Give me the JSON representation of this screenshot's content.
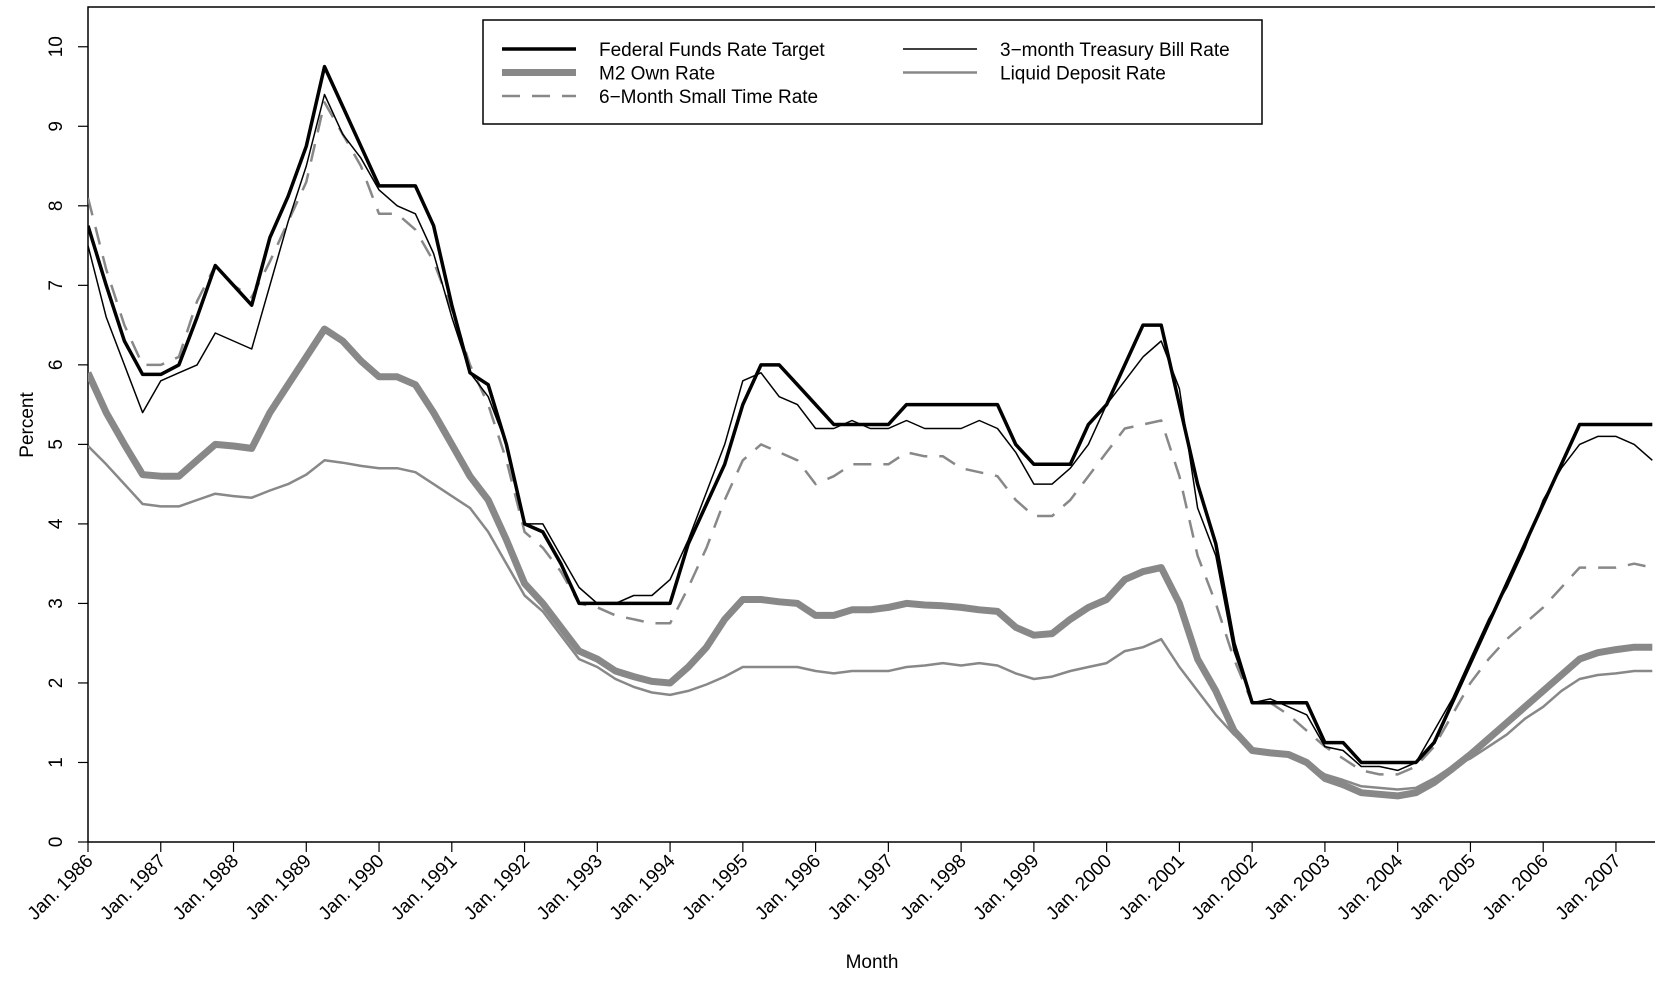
{
  "chart_data": {
    "type": "line",
    "x_label": "Month",
    "y_label": "Percent",
    "x": [
      1986,
      1986.25,
      1986.5,
      1986.75,
      1987,
      1987.25,
      1987.5,
      1987.75,
      1988,
      1988.25,
      1988.5,
      1988.75,
      1989,
      1989.25,
      1989.5,
      1989.75,
      1990,
      1990.25,
      1990.5,
      1990.75,
      1991,
      1991.25,
      1991.5,
      1991.75,
      1992,
      1992.25,
      1992.5,
      1992.75,
      1993,
      1993.25,
      1993.5,
      1993.75,
      1994,
      1994.25,
      1994.5,
      1994.75,
      1995,
      1995.25,
      1995.5,
      1995.75,
      1996,
      1996.25,
      1996.5,
      1996.75,
      1997,
      1997.25,
      1997.5,
      1997.75,
      1998,
      1998.25,
      1998.5,
      1998.75,
      1999,
      1999.25,
      1999.5,
      1999.75,
      2000,
      2000.25,
      2000.5,
      2000.75,
      2001,
      2001.25,
      2001.5,
      2001.75,
      2002,
      2002.25,
      2002.5,
      2002.75,
      2003,
      2003.25,
      2003.5,
      2003.75,
      2004,
      2004.25,
      2004.5,
      2004.75,
      2005,
      2005.25,
      2005.5,
      2005.75,
      2006,
      2006.25,
      2006.5,
      2006.75,
      2007,
      2007.25,
      2007.5
    ],
    "series": [
      {
        "name": "Federal Funds Rate Target",
        "color": "#000000",
        "line_width": 3.5,
        "dash": "none",
        "values": [
          7.75,
          7.0,
          6.3,
          5.88,
          5.88,
          6.0,
          6.6,
          7.25,
          7.0,
          6.75,
          7.6,
          8.12,
          8.75,
          9.75,
          9.25,
          8.75,
          8.25,
          8.25,
          8.25,
          7.75,
          6.75,
          5.9,
          5.75,
          5.0,
          4.0,
          3.9,
          3.5,
          3.0,
          3.0,
          3.0,
          3.0,
          3.0,
          3.0,
          3.75,
          4.25,
          4.75,
          5.5,
          6.0,
          6.0,
          5.75,
          5.5,
          5.25,
          5.25,
          5.25,
          5.25,
          5.5,
          5.5,
          5.5,
          5.5,
          5.5,
          5.5,
          5.0,
          4.75,
          4.75,
          4.75,
          5.25,
          5.5,
          6.0,
          6.5,
          6.5,
          5.5,
          4.5,
          3.75,
          2.5,
          1.75,
          1.75,
          1.75,
          1.75,
          1.25,
          1.25,
          1.0,
          1.0,
          1.0,
          1.0,
          1.25,
          1.75,
          2.25,
          2.75,
          3.25,
          3.75,
          4.25,
          4.75,
          5.25,
          5.25,
          5.25,
          5.25,
          5.25
        ]
      },
      {
        "name": "M2 Own Rate",
        "color": "#888888",
        "line_width": 7,
        "dash": "none",
        "values": [
          5.9,
          5.4,
          5.0,
          4.62,
          4.6,
          4.6,
          4.8,
          5.0,
          4.98,
          4.95,
          5.4,
          5.75,
          6.1,
          6.45,
          6.3,
          6.05,
          5.85,
          5.85,
          5.75,
          5.4,
          5.0,
          4.6,
          4.3,
          3.8,
          3.25,
          3.0,
          2.7,
          2.4,
          2.3,
          2.15,
          2.08,
          2.02,
          2.0,
          2.2,
          2.45,
          2.8,
          3.05,
          3.05,
          3.02,
          3.0,
          2.85,
          2.85,
          2.92,
          2.92,
          2.95,
          3.0,
          2.98,
          2.97,
          2.95,
          2.92,
          2.9,
          2.7,
          2.6,
          2.62,
          2.8,
          2.95,
          3.05,
          3.3,
          3.4,
          3.45,
          3.0,
          2.3,
          1.9,
          1.4,
          1.15,
          1.12,
          1.1,
          1.0,
          0.8,
          0.72,
          0.62,
          0.6,
          0.58,
          0.62,
          0.75,
          0.92,
          1.1,
          1.3,
          1.5,
          1.7,
          1.9,
          2.1,
          2.3,
          2.38,
          2.42,
          2.45,
          2.45
        ]
      },
      {
        "name": "6−Month Small Time Rate",
        "color": "#888888",
        "line_width": 2.5,
        "dash": "18 12",
        "values": [
          8.1,
          7.2,
          6.5,
          6.0,
          6.0,
          6.1,
          6.8,
          7.25,
          7.0,
          6.85,
          7.3,
          7.8,
          8.3,
          9.3,
          8.9,
          8.5,
          7.9,
          7.9,
          7.7,
          7.3,
          6.7,
          6.0,
          5.5,
          4.8,
          3.9,
          3.7,
          3.4,
          3.0,
          2.95,
          2.85,
          2.8,
          2.75,
          2.75,
          3.2,
          3.7,
          4.3,
          4.8,
          5.0,
          4.9,
          4.8,
          4.5,
          4.6,
          4.75,
          4.75,
          4.75,
          4.9,
          4.85,
          4.85,
          4.7,
          4.65,
          4.6,
          4.3,
          4.1,
          4.1,
          4.3,
          4.6,
          4.9,
          5.2,
          5.25,
          5.3,
          4.6,
          3.6,
          3.0,
          2.3,
          1.75,
          1.75,
          1.6,
          1.4,
          1.2,
          1.05,
          0.9,
          0.85,
          0.85,
          0.95,
          1.2,
          1.6,
          2.0,
          2.3,
          2.55,
          2.75,
          2.95,
          3.2,
          3.45,
          3.45,
          3.45,
          3.5,
          3.45
        ]
      },
      {
        "name": "3−month Treasury Bill Rate",
        "color": "#000000",
        "line_width": 1.5,
        "dash": "none",
        "values": [
          7.5,
          6.6,
          6.0,
          5.4,
          5.8,
          5.9,
          6.0,
          6.4,
          6.3,
          6.2,
          7.0,
          7.8,
          8.5,
          9.4,
          8.9,
          8.6,
          8.2,
          8.0,
          7.9,
          7.4,
          6.6,
          5.9,
          5.6,
          5.0,
          4.0,
          4.0,
          3.6,
          3.2,
          3.0,
          3.0,
          3.1,
          3.1,
          3.3,
          3.8,
          4.4,
          5.0,
          5.8,
          5.9,
          5.6,
          5.5,
          5.2,
          5.2,
          5.3,
          5.2,
          5.2,
          5.3,
          5.2,
          5.2,
          5.2,
          5.3,
          5.2,
          4.9,
          4.5,
          4.5,
          4.7,
          5.0,
          5.5,
          5.8,
          6.1,
          6.3,
          5.7,
          4.2,
          3.6,
          2.4,
          1.75,
          1.8,
          1.7,
          1.6,
          1.2,
          1.15,
          0.95,
          0.95,
          0.9,
          1.0,
          1.4,
          1.8,
          2.3,
          2.8,
          3.2,
          3.7,
          4.3,
          4.7,
          5.0,
          5.1,
          5.1,
          5.0,
          4.8
        ]
      },
      {
        "name": "Liquid Deposit Rate",
        "color": "#888888",
        "line_width": 2.5,
        "dash": "none",
        "values": [
          4.98,
          4.75,
          4.5,
          4.25,
          4.22,
          4.22,
          4.3,
          4.38,
          4.35,
          4.33,
          4.42,
          4.5,
          4.62,
          4.8,
          4.77,
          4.73,
          4.7,
          4.7,
          4.65,
          4.5,
          4.35,
          4.2,
          3.9,
          3.5,
          3.1,
          2.9,
          2.6,
          2.3,
          2.2,
          2.05,
          1.95,
          1.88,
          1.85,
          1.9,
          1.98,
          2.08,
          2.2,
          2.2,
          2.2,
          2.2,
          2.15,
          2.12,
          2.15,
          2.15,
          2.15,
          2.2,
          2.22,
          2.25,
          2.22,
          2.25,
          2.22,
          2.12,
          2.05,
          2.08,
          2.15,
          2.2,
          2.25,
          2.4,
          2.45,
          2.55,
          2.2,
          1.9,
          1.6,
          1.35,
          1.15,
          1.12,
          1.1,
          1.0,
          0.85,
          0.78,
          0.7,
          0.68,
          0.66,
          0.68,
          0.8,
          0.95,
          1.05,
          1.2,
          1.35,
          1.55,
          1.7,
          1.9,
          2.05,
          2.1,
          2.12,
          2.15,
          2.15
        ]
      }
    ],
    "xlim": [
      1986,
      2007.55
    ],
    "xticks": [
      {
        "value": 1986,
        "label": "Jan. 1986"
      },
      {
        "value": 1987,
        "label": "Jan. 1987"
      },
      {
        "value": 1988,
        "label": "Jan. 1988"
      },
      {
        "value": 1989,
        "label": "Jan. 1989"
      },
      {
        "value": 1990,
        "label": "Jan. 1990"
      },
      {
        "value": 1991,
        "label": "Jan. 1991"
      },
      {
        "value": 1992,
        "label": "Jan. 1992"
      },
      {
        "value": 1993,
        "label": "Jan. 1993"
      },
      {
        "value": 1994,
        "label": "Jan. 1994"
      },
      {
        "value": 1995,
        "label": "Jan. 1995"
      },
      {
        "value": 1996,
        "label": "Jan. 1996"
      },
      {
        "value": 1997,
        "label": "Jan. 1997"
      },
      {
        "value": 1998,
        "label": "Jan. 1998"
      },
      {
        "value": 1999,
        "label": "Jan. 1999"
      },
      {
        "value": 2000,
        "label": "Jan. 2000"
      },
      {
        "value": 2001,
        "label": "Jan. 2001"
      },
      {
        "value": 2002,
        "label": "Jan. 2002"
      },
      {
        "value": 2003,
        "label": "Jan. 2003"
      },
      {
        "value": 2004,
        "label": "Jan. 2004"
      },
      {
        "value": 2005,
        "label": "Jan. 2005"
      },
      {
        "value": 2006,
        "label": "Jan. 2006"
      },
      {
        "value": 2007,
        "label": "Jan. 2007"
      }
    ],
    "ylim": [
      0,
      10.5
    ],
    "yticks": [
      0,
      1,
      2,
      3,
      4,
      5,
      6,
      7,
      8,
      9,
      10
    ],
    "grid": false,
    "legend": "top"
  }
}
